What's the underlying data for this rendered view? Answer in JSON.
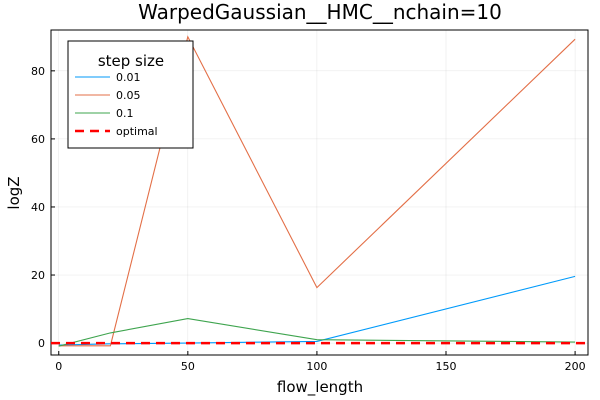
{
  "chart_data": {
    "type": "line",
    "title": "WarpedGaussian__HMC__nchain=10",
    "xlabel": "flow_length",
    "ylabel": "logZ",
    "xlim": [
      -3,
      205
    ],
    "ylim": [
      -3.5,
      92
    ],
    "xticks": [
      0,
      50,
      100,
      150,
      200
    ],
    "yticks": [
      0,
      20,
      40,
      60,
      80
    ],
    "grid": true,
    "legend": {
      "title": "step size",
      "placement": "top-left"
    },
    "series": [
      {
        "name": "0.01",
        "color": "#009AFA",
        "dash": "solid",
        "x": [
          0,
          20,
          50,
          100,
          200
        ],
        "y": [
          -0.6,
          -0.2,
          0.0,
          0.5,
          19.6
        ]
      },
      {
        "name": "0.05",
        "color": "#E36F47",
        "dash": "solid",
        "x": [
          0,
          20,
          50,
          100,
          200
        ],
        "y": [
          -0.8,
          -0.8,
          90.0,
          16.3,
          89.3
        ]
      },
      {
        "name": "0.1",
        "color": "#3EA44E",
        "dash": "solid",
        "x": [
          0,
          20,
          50,
          100,
          200
        ],
        "y": [
          -0.9,
          3.0,
          7.2,
          1.0,
          0.3
        ]
      },
      {
        "name": "optimal",
        "color": "#FF0000",
        "dash": "dashed",
        "x": [
          -3,
          205
        ],
        "y": [
          0,
          0
        ]
      }
    ]
  }
}
